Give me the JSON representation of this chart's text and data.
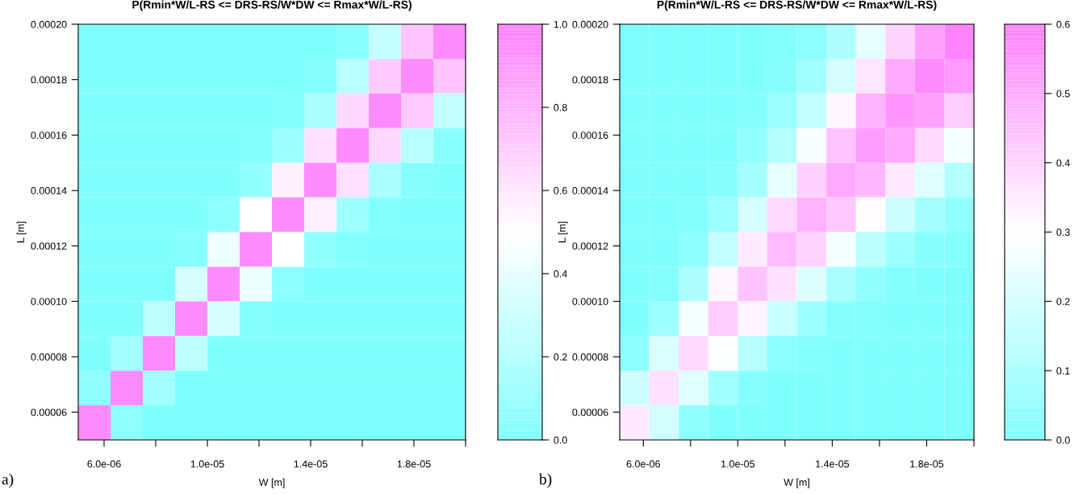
{
  "chart_data": [
    {
      "type": "heatmap",
      "title": "P(Rmin*W/L-RS <= DRS-RS/W*DW <= Rmax*W/L-RS)",
      "xlabel": "W [m]",
      "ylabel": "L [m]",
      "annotations": [
        "a)"
      ],
      "xlim": [
        5e-06,
        2e-05
      ],
      "ylim": [
        5e-05,
        0.0002
      ],
      "xticks": [
        {
          "value": 6e-06,
          "label": "6.0e-06"
        },
        {
          "value": 8e-06,
          "label": null
        },
        {
          "value": 1e-05,
          "label": "1.0e-05"
        },
        {
          "value": 1.2e-05,
          "label": null
        },
        {
          "value": 1.4e-05,
          "label": "1.4e-05"
        },
        {
          "value": 1.6e-05,
          "label": null
        },
        {
          "value": 1.8e-05,
          "label": "1.8e-05"
        },
        {
          "value": 2e-05,
          "label": null
        }
      ],
      "yticks": [
        {
          "value": 6e-05,
          "label": "0.00006"
        },
        {
          "value": 8e-05,
          "label": "0.00008"
        },
        {
          "value": 0.0001,
          "label": "0.00010"
        },
        {
          "value": 0.00012,
          "label": "0.00012"
        },
        {
          "value": 0.00014,
          "label": "0.00014"
        },
        {
          "value": 0.00016,
          "label": "0.00016"
        },
        {
          "value": 0.00018,
          "label": "0.00018"
        },
        {
          "value": 0.0002,
          "label": "0.00020"
        }
      ],
      "clim": [
        0,
        1
      ],
      "cticks": [
        {
          "value": 0,
          "label": "0.0"
        },
        {
          "value": 0.2,
          "label": "0.2"
        },
        {
          "value": 0.4,
          "label": "0.4"
        },
        {
          "value": 0.6,
          "label": "0.6"
        },
        {
          "value": 0.8,
          "label": "0.8"
        },
        {
          "value": 1,
          "label": "1.0"
        }
      ],
      "colors": [
        "#80ffff",
        "#ffffff",
        "#ff80ff"
      ],
      "cells": [
        [
          0,
          0,
          0,
          0,
          0,
          0,
          0,
          0,
          0.04,
          0.27,
          0.73,
          0.95
        ],
        [
          0,
          0,
          0,
          0,
          0,
          0,
          0,
          0.03,
          0.22,
          0.71,
          0.95,
          0.73
        ],
        [
          0,
          0,
          0,
          0,
          0,
          0,
          0.01,
          0.17,
          0.66,
          0.95,
          0.71,
          0.27
        ],
        [
          0,
          0,
          0,
          0,
          0,
          0.01,
          0.12,
          0.62,
          0.95,
          0.66,
          0.22,
          0.04
        ],
        [
          0,
          0,
          0,
          0,
          0,
          0.08,
          0.56,
          0.95,
          0.62,
          0.17,
          0.03,
          0
        ],
        [
          0,
          0,
          0,
          0,
          0.05,
          0.5,
          0.95,
          0.56,
          0.12,
          0.01,
          0,
          0
        ],
        [
          0,
          0,
          0,
          0.02,
          0.43,
          0.95,
          0.5,
          0.08,
          0.01,
          0,
          0,
          0
        ],
        [
          0,
          0,
          0,
          0.34,
          0.95,
          0.43,
          0.05,
          0,
          0,
          0,
          0,
          0
        ],
        [
          0,
          0,
          0.24,
          0.95,
          0.34,
          0.02,
          0,
          0,
          0,
          0,
          0,
          0
        ],
        [
          0,
          0.14,
          0.95,
          0.24,
          0,
          0,
          0,
          0,
          0,
          0,
          0,
          0
        ],
        [
          0.06,
          0.95,
          0.14,
          0,
          0,
          0,
          0,
          0,
          0,
          0,
          0,
          0
        ],
        [
          0.95,
          0.06,
          0,
          0,
          0,
          0,
          0,
          0,
          0,
          0,
          0,
          0
        ]
      ]
    },
    {
      "type": "heatmap",
      "title": "P(Rmin*W/L-RS <= DRS-RS/W*DW <= Rmax*W/L-RS)",
      "xlabel": "W [m]",
      "ylabel": "L [m]",
      "annotations": [
        "b)"
      ],
      "xlim": [
        5e-06,
        2e-05
      ],
      "ylim": [
        5e-05,
        0.0002
      ],
      "xticks": [
        {
          "value": 6e-06,
          "label": "6.0e-06"
        },
        {
          "value": 8e-06,
          "label": null
        },
        {
          "value": 1e-05,
          "label": "1.0e-05"
        },
        {
          "value": 1.2e-05,
          "label": null
        },
        {
          "value": 1.4e-05,
          "label": "1.4e-05"
        },
        {
          "value": 1.6e-05,
          "label": null
        },
        {
          "value": 1.8e-05,
          "label": "1.8e-05"
        },
        {
          "value": 2e-05,
          "label": null
        }
      ],
      "yticks": [
        {
          "value": 6e-05,
          "label": "0.00006"
        },
        {
          "value": 8e-05,
          "label": "0.00008"
        },
        {
          "value": 0.0001,
          "label": "0.00010"
        },
        {
          "value": 0.00012,
          "label": "0.00012"
        },
        {
          "value": 0.00014,
          "label": "0.00014"
        },
        {
          "value": 0.00016,
          "label": "0.00016"
        },
        {
          "value": 0.00018,
          "label": "0.00018"
        },
        {
          "value": 0.0002,
          "label": "0.00020"
        }
      ],
      "clim": [
        0,
        0.6
      ],
      "cticks": [
        {
          "value": 0,
          "label": "0.0"
        },
        {
          "value": 0.1,
          "label": "0.1"
        },
        {
          "value": 0.2,
          "label": "0.2"
        },
        {
          "value": 0.3,
          "label": "0.3"
        },
        {
          "value": 0.4,
          "label": "0.4"
        },
        {
          "value": 0.5,
          "label": "0.5"
        },
        {
          "value": 0.6,
          "label": "0.6"
        }
      ],
      "colors": [
        "#80ffff",
        "#ffffff",
        "#ff80ff"
      ],
      "cells": [
        [
          0,
          0,
          0,
          0,
          0,
          0.01,
          0.03,
          0.11,
          0.24,
          0.4,
          0.52,
          0.59
        ],
        [
          0,
          0,
          0,
          0,
          0,
          0.02,
          0.08,
          0.2,
          0.36,
          0.5,
          0.57,
          0.54
        ],
        [
          0,
          0,
          0,
          0,
          0.01,
          0.06,
          0.16,
          0.32,
          0.48,
          0.55,
          0.52,
          0.42
        ],
        [
          0,
          0,
          0,
          0,
          0.04,
          0.12,
          0.28,
          0.44,
          0.53,
          0.5,
          0.39,
          0.27
        ],
        [
          0,
          0,
          0,
          0.02,
          0.09,
          0.24,
          0.41,
          0.5,
          0.47,
          0.35,
          0.23,
          0.12
        ],
        [
          0,
          0,
          0.01,
          0.06,
          0.2,
          0.39,
          0.48,
          0.43,
          0.31,
          0.18,
          0.09,
          0.04
        ],
        [
          0,
          0,
          0.03,
          0.16,
          0.35,
          0.46,
          0.4,
          0.27,
          0.14,
          0.07,
          0.02,
          0.01
        ],
        [
          0,
          0.01,
          0.11,
          0.32,
          0.44,
          0.37,
          0.22,
          0.1,
          0.04,
          0.01,
          0,
          0
        ],
        [
          0,
          0.07,
          0.27,
          0.42,
          0.33,
          0.17,
          0.07,
          0.02,
          0.01,
          0,
          0,
          0
        ],
        [
          0.03,
          0.22,
          0.39,
          0.29,
          0.13,
          0.03,
          0.01,
          0,
          0,
          0,
          0,
          0
        ],
        [
          0.18,
          0.37,
          0.23,
          0.08,
          0.02,
          0,
          0,
          0,
          0,
          0,
          0,
          0
        ],
        [
          0.35,
          0.19,
          0.04,
          0,
          0,
          0,
          0,
          0,
          0,
          0,
          0,
          0
        ]
      ]
    }
  ]
}
